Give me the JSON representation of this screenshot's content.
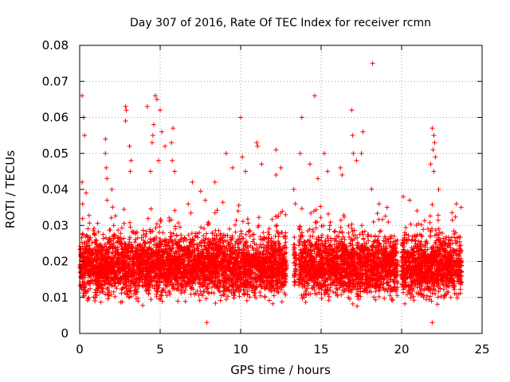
{
  "chart_data": {
    "type": "scatter",
    "title": "Day 307 of 2016, Rate Of TEC Index for receiver rcmn",
    "xlabel": "GPS time / hours",
    "ylabel": "ROTI / TECUs",
    "xlim": [
      0,
      25
    ],
    "ylim": [
      0,
      0.08
    ],
    "x_ticks": [
      0,
      5,
      10,
      15,
      20,
      25
    ],
    "x_tick_labels": [
      "0",
      "5",
      "10",
      "15",
      "20",
      "25"
    ],
    "y_ticks": [
      0,
      0.01,
      0.02,
      0.03,
      0.04,
      0.05,
      0.06,
      0.07,
      0.08
    ],
    "y_tick_labels": [
      "0",
      "0.01",
      "0.02",
      "0.03",
      "0.04",
      "0.05",
      "0.06",
      "0.07",
      "0.08"
    ],
    "grid": true,
    "marker": "+",
    "color": "#ff0000",
    "series": [
      {
        "name": "ROTI",
        "data_gaps_hours": [
          [
            12.85,
            13.3
          ],
          [
            13.45,
            13.6
          ],
          [
            19.75,
            20.0
          ]
        ],
        "baseline_min": 0.005,
        "typical_band": [
          0.007,
          0.028
        ],
        "notable_points": [
          {
            "x": 0.15,
            "y": 0.066
          },
          {
            "x": 0.25,
            "y": 0.06
          },
          {
            "x": 0.3,
            "y": 0.055
          },
          {
            "x": 0.15,
            "y": 0.042
          },
          {
            "x": 0.4,
            "y": 0.039
          },
          {
            "x": 1.6,
            "y": 0.054
          },
          {
            "x": 1.6,
            "y": 0.05
          },
          {
            "x": 1.65,
            "y": 0.046
          },
          {
            "x": 1.7,
            "y": 0.043
          },
          {
            "x": 2.0,
            "y": 0.04
          },
          {
            "x": 2.85,
            "y": 0.063
          },
          {
            "x": 2.9,
            "y": 0.062
          },
          {
            "x": 2.85,
            "y": 0.059
          },
          {
            "x": 3.1,
            "y": 0.052
          },
          {
            "x": 3.2,
            "y": 0.048
          },
          {
            "x": 3.15,
            "y": 0.045
          },
          {
            "x": 4.2,
            "y": 0.063
          },
          {
            "x": 4.7,
            "y": 0.066
          },
          {
            "x": 4.8,
            "y": 0.065
          },
          {
            "x": 4.6,
            "y": 0.058
          },
          {
            "x": 4.55,
            "y": 0.055
          },
          {
            "x": 4.5,
            "y": 0.053
          },
          {
            "x": 4.9,
            "y": 0.048
          },
          {
            "x": 4.4,
            "y": 0.045
          },
          {
            "x": 5.0,
            "y": 0.062
          },
          {
            "x": 5.1,
            "y": 0.056
          },
          {
            "x": 5.3,
            "y": 0.052
          },
          {
            "x": 5.8,
            "y": 0.057
          },
          {
            "x": 5.7,
            "y": 0.053
          },
          {
            "x": 5.75,
            "y": 0.048
          },
          {
            "x": 5.9,
            "y": 0.045
          },
          {
            "x": 7.0,
            "y": 0.042
          },
          {
            "x": 7.8,
            "y": 0.037
          },
          {
            "x": 8.4,
            "y": 0.042
          },
          {
            "x": 9.1,
            "y": 0.05
          },
          {
            "x": 9.5,
            "y": 0.046
          },
          {
            "x": 10.0,
            "y": 0.06
          },
          {
            "x": 10.1,
            "y": 0.049
          },
          {
            "x": 10.3,
            "y": 0.045
          },
          {
            "x": 11.0,
            "y": 0.053
          },
          {
            "x": 11.05,
            "y": 0.052
          },
          {
            "x": 11.3,
            "y": 0.047
          },
          {
            "x": 12.2,
            "y": 0.051
          },
          {
            "x": 12.5,
            "y": 0.046
          },
          {
            "x": 12.2,
            "y": 0.044
          },
          {
            "x": 13.3,
            "y": 0.04
          },
          {
            "x": 13.4,
            "y": 0.036
          },
          {
            "x": 13.8,
            "y": 0.06
          },
          {
            "x": 13.7,
            "y": 0.05
          },
          {
            "x": 14.3,
            "y": 0.047
          },
          {
            "x": 14.6,
            "y": 0.066
          },
          {
            "x": 14.8,
            "y": 0.043
          },
          {
            "x": 15.2,
            "y": 0.05
          },
          {
            "x": 15.4,
            "y": 0.045
          },
          {
            "x": 16.2,
            "y": 0.046
          },
          {
            "x": 16.3,
            "y": 0.044
          },
          {
            "x": 16.9,
            "y": 0.062
          },
          {
            "x": 16.95,
            "y": 0.055
          },
          {
            "x": 17.0,
            "y": 0.05
          },
          {
            "x": 17.2,
            "y": 0.048
          },
          {
            "x": 17.6,
            "y": 0.056
          },
          {
            "x": 17.5,
            "y": 0.05
          },
          {
            "x": 18.2,
            "y": 0.075
          },
          {
            "x": 18.6,
            "y": 0.036
          },
          {
            "x": 19.1,
            "y": 0.035
          },
          {
            "x": 20.1,
            "y": 0.038
          },
          {
            "x": 20.5,
            "y": 0.037
          },
          {
            "x": 21.9,
            "y": 0.057
          },
          {
            "x": 22.0,
            "y": 0.055
          },
          {
            "x": 22.05,
            "y": 0.053
          },
          {
            "x": 21.95,
            "y": 0.051
          },
          {
            "x": 22.1,
            "y": 0.049
          },
          {
            "x": 21.8,
            "y": 0.047
          },
          {
            "x": 22.0,
            "y": 0.045
          },
          {
            "x": 22.3,
            "y": 0.04
          },
          {
            "x": 23.4,
            "y": 0.036
          },
          {
            "x": 23.7,
            "y": 0.035
          },
          {
            "x": 7.9,
            "y": 0.003
          },
          {
            "x": 21.9,
            "y": 0.003
          }
        ]
      }
    ]
  }
}
